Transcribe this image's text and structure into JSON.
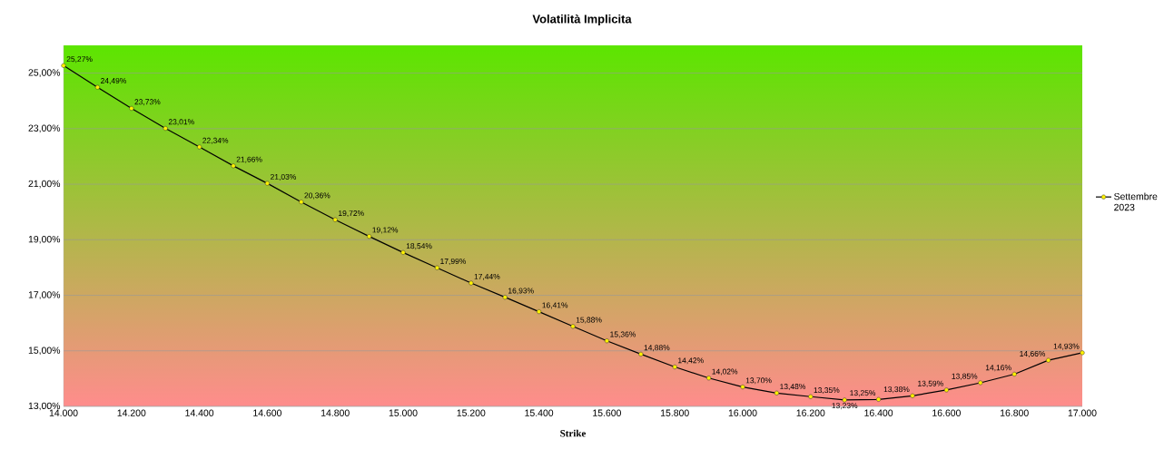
{
  "chart_data": {
    "type": "line",
    "title": "Volatilità Implicita",
    "xlabel": "Strike",
    "x": [
      14000,
      14100,
      14200,
      14300,
      14400,
      14500,
      14600,
      14700,
      14800,
      14900,
      15000,
      15100,
      15200,
      15300,
      15400,
      15500,
      15600,
      15700,
      15800,
      15900,
      16000,
      16100,
      16200,
      16300,
      16400,
      16500,
      16600,
      16700,
      16800,
      16900,
      17000
    ],
    "series": [
      {
        "name": "Settembre 2023",
        "color": "#000000",
        "values": [
          25.27,
          24.49,
          23.73,
          23.01,
          22.34,
          21.66,
          21.03,
          20.36,
          19.72,
          19.12,
          18.54,
          17.99,
          17.44,
          16.93,
          16.41,
          15.88,
          15.36,
          14.88,
          14.42,
          14.02,
          13.7,
          13.48,
          13.35,
          13.23,
          13.25,
          13.38,
          13.59,
          13.85,
          14.16,
          14.66,
          14.93
        ],
        "value_labels": [
          "25,27%",
          "24,49%",
          "23,73%",
          "23,01%",
          "22,34%",
          "21,66%",
          "21,03%",
          "20,36%",
          "19,72%",
          "19,12%",
          "18,54%",
          "17,99%",
          "17,44%",
          "16,93%",
          "16,41%",
          "15,88%",
          "15,36%",
          "14,88%",
          "14,42%",
          "14,02%",
          "13,70%",
          "13,48%",
          "13,35%",
          "13,23%",
          "13,25%",
          "13,38%",
          "13,59%",
          "13,85%",
          "14,16%",
          "14,66%",
          "14,93%"
        ]
      }
    ],
    "xlim": [
      14000,
      17000
    ],
    "xticks": [
      {
        "value": 14000,
        "label": "14.000"
      },
      {
        "value": 14200,
        "label": "14.200"
      },
      {
        "value": 14400,
        "label": "14.400"
      },
      {
        "value": 14600,
        "label": "14.600"
      },
      {
        "value": 14800,
        "label": "14.800"
      },
      {
        "value": 15000,
        "label": "15.000"
      },
      {
        "value": 15200,
        "label": "15.200"
      },
      {
        "value": 15400,
        "label": "15.400"
      },
      {
        "value": 15600,
        "label": "15.600"
      },
      {
        "value": 15800,
        "label": "15.800"
      },
      {
        "value": 16000,
        "label": "16.000"
      },
      {
        "value": 16200,
        "label": "16.200"
      },
      {
        "value": 16400,
        "label": "16.400"
      },
      {
        "value": 16600,
        "label": "16.600"
      },
      {
        "value": 16800,
        "label": "16.800"
      },
      {
        "value": 17000,
        "label": "17.000"
      }
    ],
    "ylim": [
      13,
      26
    ],
    "yticks": [
      {
        "value": 13,
        "label": "13,00%"
      },
      {
        "value": 15,
        "label": "15,00%"
      },
      {
        "value": 17,
        "label": "17,00%"
      },
      {
        "value": 19,
        "label": "19,00%"
      },
      {
        "value": 21,
        "label": "21,00%"
      },
      {
        "value": 23,
        "label": "23,00%"
      },
      {
        "value": 25,
        "label": "25,00%"
      }
    ],
    "grid": "y",
    "legend": "right",
    "marker": "circle",
    "line_style": "solid"
  }
}
